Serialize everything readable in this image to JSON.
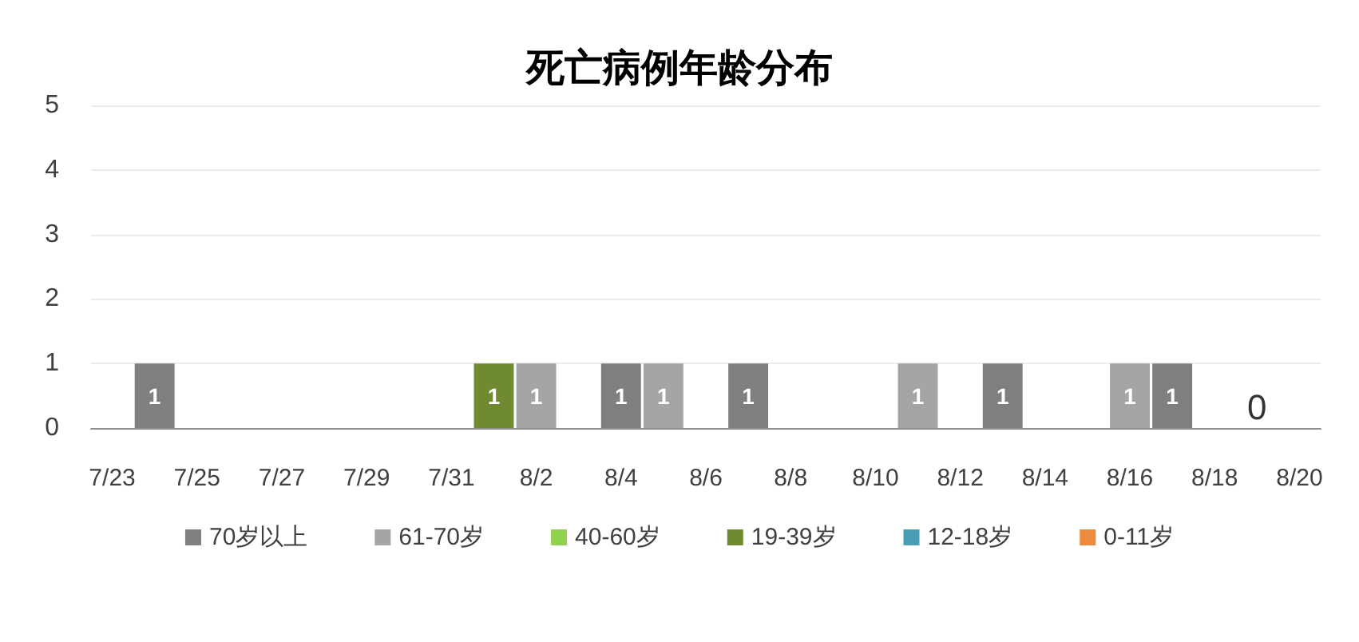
{
  "chart_data": {
    "type": "bar",
    "title": "死亡病例年龄分布",
    "categories": [
      "7/23",
      null,
      "7/25",
      null,
      "7/27",
      null,
      "7/29",
      null,
      "7/31",
      null,
      "8/2",
      null,
      "8/4",
      null,
      "8/6",
      null,
      "8/8",
      null,
      "8/10",
      null,
      "8/12",
      null,
      "8/14",
      null,
      "8/16",
      null,
      "8/18",
      null,
      "8/20"
    ],
    "series": [
      {
        "name": "70岁以上",
        "color": "#7f7f7f",
        "values": [
          null,
          1,
          null,
          null,
          null,
          null,
          null,
          null,
          null,
          null,
          null,
          null,
          1,
          null,
          null,
          1,
          null,
          null,
          null,
          null,
          null,
          1,
          null,
          null,
          null,
          1,
          null,
          null,
          null
        ]
      },
      {
        "name": "61-70岁",
        "color": "#a5a5a5",
        "values": [
          null,
          null,
          null,
          null,
          null,
          null,
          null,
          null,
          null,
          null,
          1,
          null,
          null,
          1,
          null,
          null,
          null,
          null,
          null,
          1,
          null,
          null,
          null,
          null,
          1,
          null,
          null,
          null,
          null
        ]
      },
      {
        "name": "40-60岁",
        "color": "#92d050",
        "values": [
          null,
          null,
          null,
          null,
          null,
          null,
          null,
          null,
          null,
          null,
          null,
          null,
          null,
          null,
          null,
          null,
          null,
          null,
          null,
          null,
          null,
          null,
          null,
          null,
          null,
          null,
          null,
          null,
          null
        ]
      },
      {
        "name": "19-39岁",
        "color": "#6f8a31",
        "values": [
          null,
          null,
          null,
          null,
          null,
          null,
          null,
          null,
          null,
          1,
          null,
          null,
          null,
          null,
          null,
          null,
          null,
          null,
          null,
          null,
          null,
          null,
          null,
          null,
          null,
          null,
          null,
          null,
          null
        ]
      },
      {
        "name": "12-18岁",
        "color": "#4a9db5",
        "values": [
          null,
          null,
          null,
          null,
          null,
          null,
          null,
          null,
          null,
          null,
          null,
          null,
          null,
          null,
          null,
          null,
          null,
          null,
          null,
          null,
          null,
          null,
          null,
          null,
          null,
          null,
          null,
          null,
          null
        ]
      },
      {
        "name": "0-11岁",
        "color": "#ed8a3c",
        "values": [
          null,
          null,
          null,
          null,
          null,
          null,
          null,
          null,
          null,
          null,
          null,
          null,
          null,
          null,
          null,
          null,
          null,
          null,
          null,
          null,
          null,
          null,
          null,
          null,
          null,
          null,
          null,
          null,
          null
        ]
      }
    ],
    "totals": [
      null,
      null,
      null,
      null,
      null,
      null,
      null,
      null,
      null,
      null,
      null,
      null,
      null,
      null,
      null,
      null,
      null,
      null,
      null,
      null,
      null,
      null,
      null,
      null,
      null,
      null,
      null,
      "0",
      null
    ],
    "stacked": true,
    "data_labels": true,
    "ylim": [
      0,
      5
    ],
    "yticks": [
      0,
      1,
      2,
      3,
      4,
      5
    ],
    "grid": "y",
    "legend": "bottom"
  }
}
